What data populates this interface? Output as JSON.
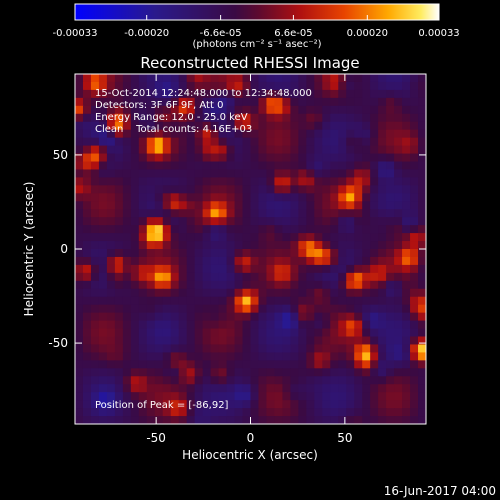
{
  "chart_data": {
    "type": "heatmap",
    "title": "Reconstructed RHESSI Image",
    "xlabel": "Heliocentric X (arcsec)",
    "ylabel": "Heliocentric Y (arcsec)",
    "xlim": [
      -93,
      93
    ],
    "ylim": [
      -93,
      93
    ],
    "x_ticks": [
      "-50",
      "0",
      "50"
    ],
    "x_tick_values": [
      -50,
      0,
      50
    ],
    "y_ticks": [
      "50",
      "0",
      "-50"
    ],
    "y_tick_values": [
      50,
      0,
      -50
    ],
    "colorbar": {
      "tick_labels": [
        "-0.00033",
        "-0.00020",
        "-6.6e-05",
        "6.6e-05",
        "0.00020",
        "0.00033"
      ],
      "tick_values": [
        -0.00033,
        -0.0002,
        -6.6e-05,
        6.6e-05,
        0.0002,
        0.00033
      ],
      "range": [
        -0.00033,
        0.00033
      ],
      "unit_label": "(photons cm⁻² s⁻¹ asec⁻²)",
      "colormap": "blue-purple-red-yellow-white"
    },
    "annotations": [
      "15-Oct-2014 12:24:48.000 to 12:34:48.000",
      "Detectors: 3F 6F 9F, Att 0",
      "Energy Range: 12.0 - 25.0 keV",
      "Clean    Total counts: 4.16E+03"
    ],
    "peak_label": "Position of Peak = [-86,92]",
    "peak_position": [
      -86,
      92
    ],
    "grid": false
  },
  "footer": {
    "timestamp": "16-Jun-2017 04:00"
  }
}
